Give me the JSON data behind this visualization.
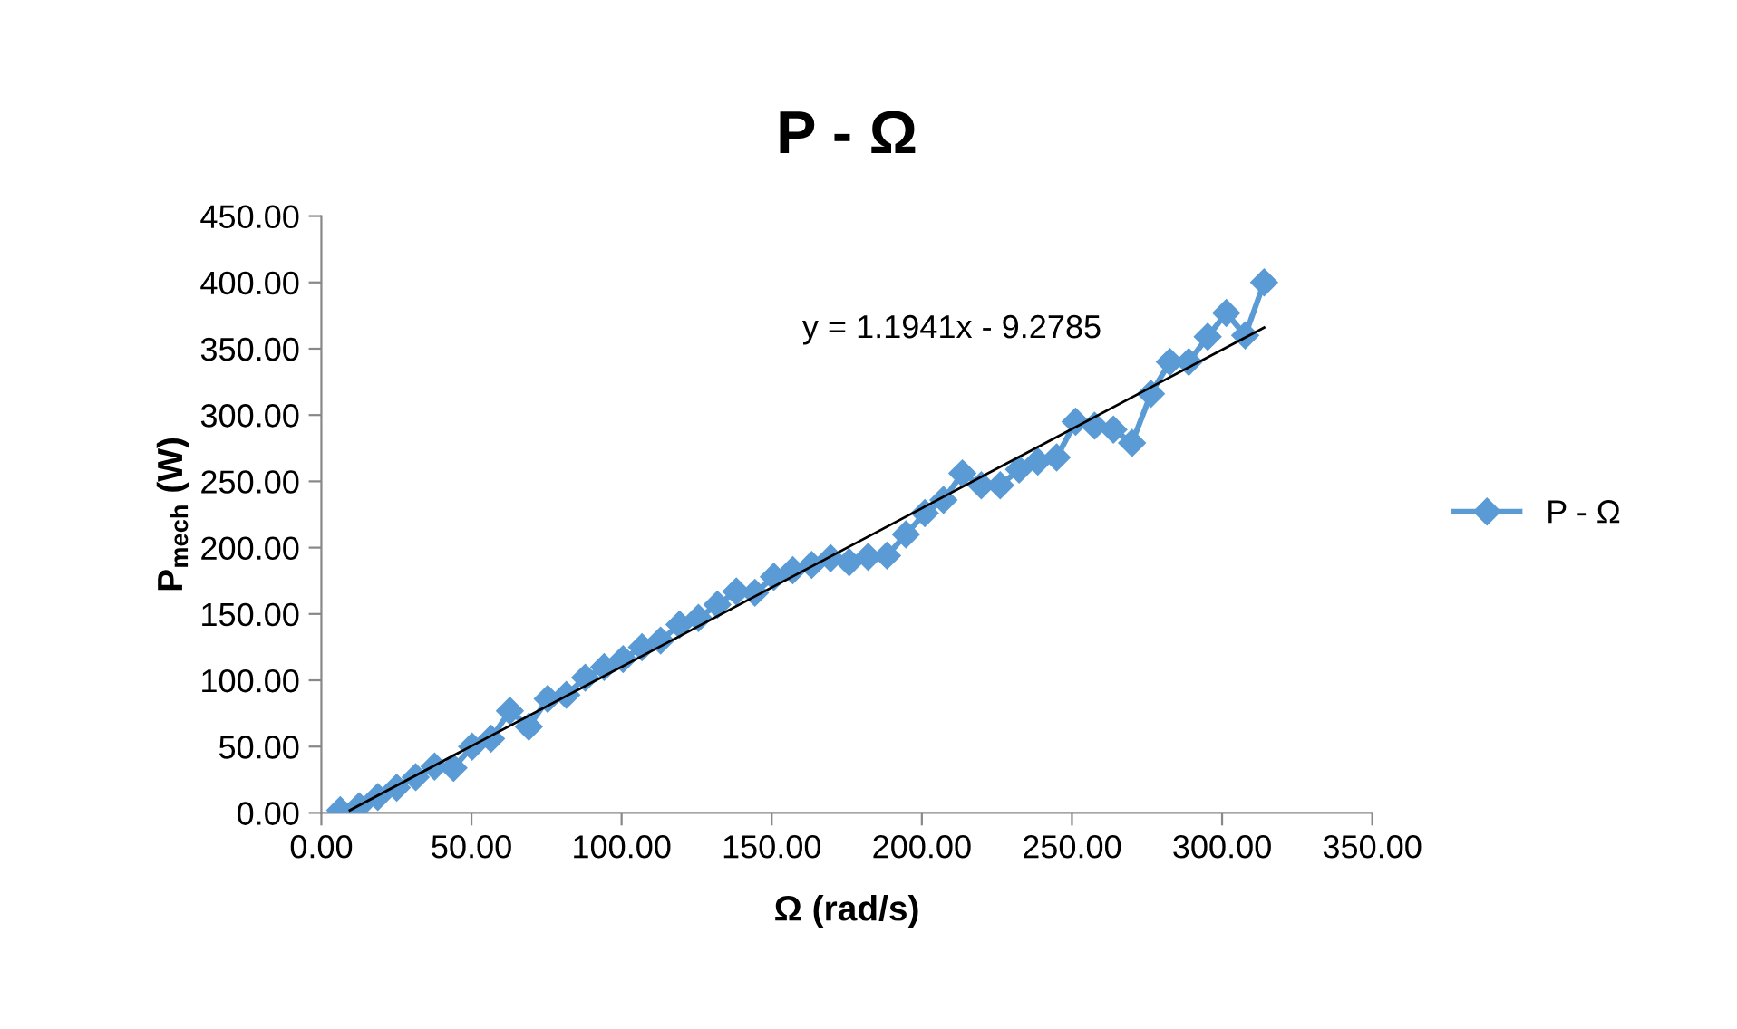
{
  "chart_data": {
    "type": "line",
    "title": "P - Ω",
    "xlabel": "Ω (rad/s)",
    "ylabel": "P$_{mech}$ (W)",
    "xlim": [
      0,
      350
    ],
    "ylim": [
      0,
      450
    ],
    "xticks": [
      {
        "value": 0,
        "label": "0.00"
      },
      {
        "value": 50,
        "label": "50.00"
      },
      {
        "value": 100,
        "label": "100.00"
      },
      {
        "value": 150,
        "label": "150.00"
      },
      {
        "value": 200,
        "label": "200.00"
      },
      {
        "value": 250,
        "label": "250.00"
      },
      {
        "value": 300,
        "label": "300.00"
      },
      {
        "value": 350,
        "label": "350.00"
      }
    ],
    "yticks": [
      {
        "value": 0,
        "label": "0.00"
      },
      {
        "value": 50,
        "label": "50.00"
      },
      {
        "value": 100,
        "label": "100.00"
      },
      {
        "value": 150,
        "label": "150.00"
      },
      {
        "value": 200,
        "label": "200.00"
      },
      {
        "value": 250,
        "label": "250.00"
      },
      {
        "value": 300,
        "label": "300.00"
      },
      {
        "value": 350,
        "label": "350.00"
      },
      {
        "value": 400,
        "label": "400.00"
      },
      {
        "value": 450,
        "label": "450.00"
      }
    ],
    "grid": false,
    "legend": "right",
    "marker": "diamond",
    "line_style": "solid",
    "annotations": [
      "y = 1.1941x - 9.2785"
    ],
    "series": [
      {
        "name": "P - Ω",
        "color": "#5b9bd5",
        "x": [
          6.3,
          12.6,
          18.8,
          25.1,
          31.4,
          37.7,
          44.0,
          50.2,
          56.5,
          62.8,
          69.1,
          75.4,
          81.6,
          87.9,
          94.2,
          100.5,
          106.8,
          113.0,
          119.3,
          125.6,
          131.9,
          138.2,
          144.4,
          150.7,
          157.0,
          163.3,
          169.6,
          175.8,
          182.1,
          188.4,
          194.7,
          201.0,
          207.2,
          213.5,
          219.8,
          226.1,
          232.4,
          238.6,
          244.9,
          251.2,
          257.5,
          263.8,
          270.0,
          276.3,
          282.6,
          288.9,
          295.2,
          301.4,
          307.7,
          314.0
        ],
        "values": [
          2,
          5,
          12,
          19,
          27,
          35,
          34,
          50,
          56,
          77,
          65,
          86,
          89,
          102,
          110,
          116,
          125,
          130,
          142,
          147,
          157,
          167,
          166,
          178,
          183,
          187,
          192,
          189,
          193,
          194,
          210,
          226,
          236,
          256,
          247,
          247,
          259,
          265,
          268,
          295,
          292,
          289,
          279,
          316,
          340,
          340,
          359,
          377,
          360,
          400
        ]
      },
      {
        "type": "line",
        "color": "#000000",
        "marker": "none",
        "x": [
          9.5,
          314.0
        ],
        "values": [
          2,
          366
        ]
      }
    ]
  }
}
